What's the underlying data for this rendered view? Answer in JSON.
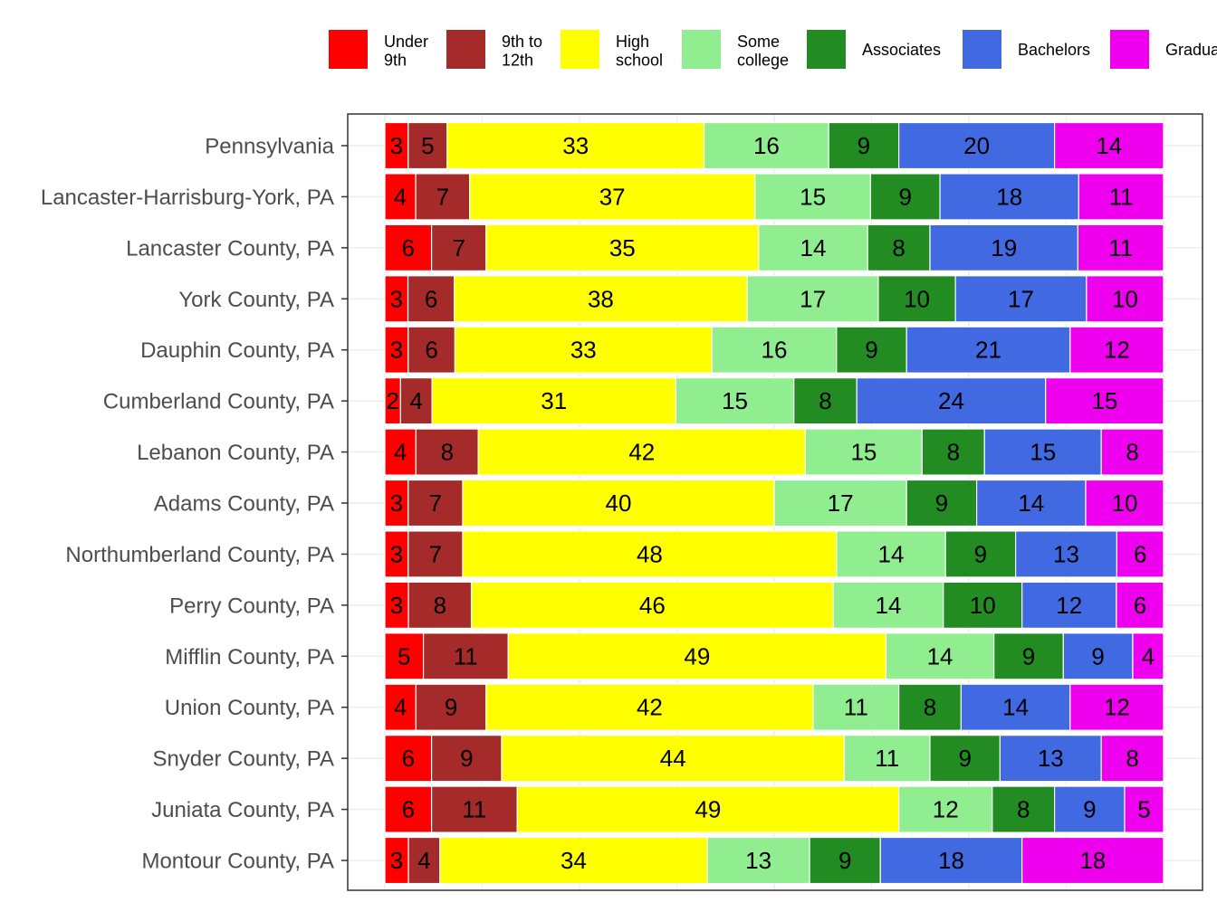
{
  "chart_data": {
    "type": "bar",
    "orientation": "horizontal",
    "stacked": true,
    "title": "",
    "xlabel": "",
    "ylabel": "",
    "xlim": [
      0,
      100
    ],
    "grid": true,
    "legend_position": "top",
    "categories": [
      "Pennsylvania",
      "Lancaster-Harrisburg-York, PA",
      "Lancaster County, PA",
      "York County, PA",
      "Dauphin County, PA",
      "Cumberland County, PA",
      "Lebanon County, PA",
      "Adams County, PA",
      "Northumberland County, PA",
      "Perry County, PA",
      "Mifflin County, PA",
      "Union County, PA",
      "Snyder County, PA",
      "Juniata County, PA",
      "Montour County, PA"
    ],
    "series": [
      {
        "name": [
          "Under",
          "9th"
        ],
        "color": "#ff0000",
        "values": [
          3,
          4,
          6,
          3,
          3,
          2,
          4,
          3,
          3,
          3,
          5,
          4,
          6,
          6,
          3
        ]
      },
      {
        "name": [
          "9th to",
          "12th"
        ],
        "color": "#a52a2a",
        "values": [
          5,
          7,
          7,
          6,
          6,
          4,
          8,
          7,
          7,
          8,
          11,
          9,
          9,
          11,
          4
        ]
      },
      {
        "name": [
          "High",
          "school"
        ],
        "color": "#ffff00",
        "values": [
          33,
          37,
          35,
          38,
          33,
          31,
          42,
          40,
          48,
          46,
          49,
          42,
          44,
          49,
          34
        ]
      },
      {
        "name": [
          "Some",
          "college"
        ],
        "color": "#90ee90",
        "values": [
          16,
          15,
          14,
          17,
          16,
          15,
          15,
          17,
          14,
          14,
          14,
          11,
          11,
          12,
          13
        ]
      },
      {
        "name": [
          "Associates"
        ],
        "color": "#228b22",
        "values": [
          9,
          9,
          8,
          10,
          9,
          8,
          8,
          9,
          9,
          10,
          9,
          8,
          9,
          8,
          9
        ]
      },
      {
        "name": [
          "Bachelors"
        ],
        "color": "#4169e1",
        "values": [
          20,
          18,
          19,
          17,
          21,
          24,
          15,
          14,
          13,
          12,
          9,
          14,
          13,
          9,
          18
        ]
      },
      {
        "name": [
          "Graduate"
        ],
        "color": "#ee00ee",
        "values": [
          14,
          11,
          11,
          10,
          12,
          15,
          8,
          10,
          6,
          6,
          4,
          12,
          8,
          5,
          18
        ]
      }
    ]
  }
}
